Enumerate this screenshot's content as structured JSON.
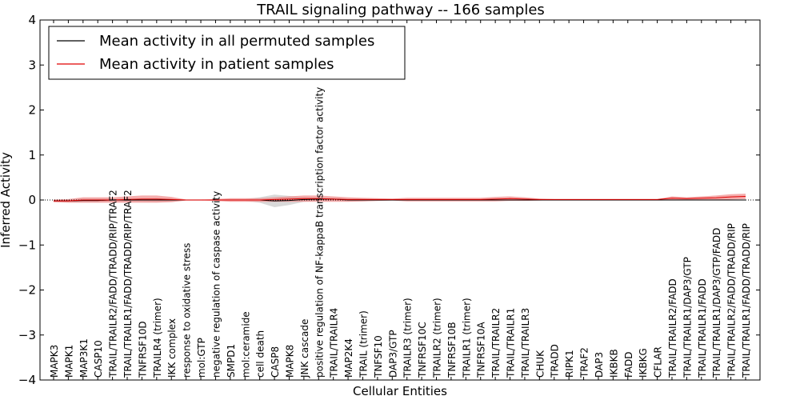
{
  "chart_data": {
    "type": "line",
    "title": "TRAIL signaling pathway -- 166 samples",
    "xlabel": "Cellular Entities",
    "ylabel": "Inferred Activity",
    "ylim": [
      -4,
      4
    ],
    "yticks": [
      -4,
      -3,
      -2,
      -1,
      0,
      1,
      2,
      3,
      4
    ],
    "grid": false,
    "legend_position": "top-left",
    "zero_line": "dotted",
    "categories": [
      "MAPK3",
      "MAPK1",
      "MAP3K1",
      "CASP10",
      "TRAIL/TRAILR2/FADD/TRADD/RIP/TRAF2",
      "TRAIL/TRAILR1/FADD/TRADD/RIP/TRAF2",
      "TNFRSF10D",
      "TRAILR4 (trimer)",
      "IKK complex",
      "response to oxidative stress",
      "mol:GTP",
      "negative regulation of caspase activity",
      "SMPD1",
      "mol:ceramide",
      "cell death",
      "CASP8",
      "MAPK8",
      "JNK cascade",
      "positive regulation of NF-kappaB transcription factor activity",
      "TRAIL/TRAILR4",
      "MAP2K4",
      "TRAIL (trimer)",
      "TNFSF10",
      "DAP3/GTP",
      "TRAILR3 (trimer)",
      "TNFRSF10C",
      "TRAILR2 (trimer)",
      "TNFRSF10B",
      "TRAILR1 (trimer)",
      "TNFRSF10A",
      "TRAIL/TRAILR2",
      "TRAIL/TRAILR1",
      "TRAIL/TRAILR3",
      "CHUK",
      "TRADD",
      "RIPK1",
      "TRAF2",
      "DAP3",
      "IKBKB",
      "FADD",
      "IKBKG",
      "CFLAR",
      "TRAIL/TRAILR2/FADD",
      "TRAIL/TRAILR1/DAP3/GTP",
      "TRAIL/TRAILR1/FADD",
      "TRAIL/TRAILR1/DAP3/GTP/FADD",
      "TRAIL/TRAILR2/FADD/TRADD/RIP",
      "TRAIL/TRAILR1/FADD/TRADD/RIP"
    ],
    "series": [
      {
        "name": "Mean activity in all permuted samples",
        "color": "#000000",
        "band_color": "#bfbfbf",
        "values": [
          -0.02,
          -0.02,
          -0.01,
          -0.01,
          0,
          0,
          0,
          0,
          0,
          0,
          0,
          0,
          0,
          0,
          0,
          -0.02,
          -0.01,
          0.01,
          0.02,
          0.02,
          0,
          0,
          0,
          0,
          0,
          0,
          0,
          0,
          0,
          0,
          0,
          0,
          0,
          0,
          0,
          0,
          0,
          0,
          0,
          0,
          0,
          0,
          0,
          0,
          0,
          0,
          0,
          0
        ],
        "band": [
          0.02,
          0.03,
          0.04,
          0.04,
          0.03,
          0.03,
          0.03,
          0.04,
          0.03,
          0.01,
          0.01,
          0.01,
          0.02,
          0.02,
          0.06,
          0.14,
          0.1,
          0.05,
          0.03,
          0.03,
          0.03,
          0.03,
          0.02,
          0.01,
          0.01,
          0.01,
          0.01,
          0.01,
          0.01,
          0.01,
          0.01,
          0.01,
          0.01,
          0.01,
          0.01,
          0.01,
          0.01,
          0.01,
          0.01,
          0.01,
          0.01,
          0.01,
          0.01,
          0.01,
          0.01,
          0.01,
          0.01,
          0.01
        ]
      },
      {
        "name": "Mean activity in patient samples",
        "color": "#e00000",
        "band_color": "#f08080",
        "values": [
          -0.02,
          -0.02,
          0,
          0,
          0,
          0.01,
          0.02,
          0.02,
          0.01,
          0,
          0,
          0,
          0,
          0,
          0,
          0.01,
          0.02,
          0.03,
          0.03,
          0.02,
          0.01,
          0.01,
          0.01,
          0.01,
          0.01,
          0.01,
          0.01,
          0.01,
          0.01,
          0.01,
          0.02,
          0.03,
          0.02,
          0.01,
          0.01,
          0.01,
          0.01,
          0.01,
          0.01,
          0.01,
          0.01,
          0.01,
          0.04,
          0.03,
          0.04,
          0.05,
          0.07,
          0.08
        ],
        "band": [
          0.03,
          0.04,
          0.06,
          0.06,
          0.06,
          0.07,
          0.08,
          0.08,
          0.06,
          0.01,
          0.01,
          0.02,
          0.04,
          0.04,
          0.04,
          0.05,
          0.06,
          0.07,
          0.07,
          0.06,
          0.05,
          0.04,
          0.03,
          0.02,
          0.04,
          0.04,
          0.04,
          0.04,
          0.04,
          0.04,
          0.05,
          0.05,
          0.04,
          0.02,
          0.01,
          0.01,
          0.01,
          0.01,
          0.01,
          0.01,
          0.01,
          0.01,
          0.04,
          0.03,
          0.04,
          0.05,
          0.06,
          0.06
        ]
      }
    ]
  }
}
